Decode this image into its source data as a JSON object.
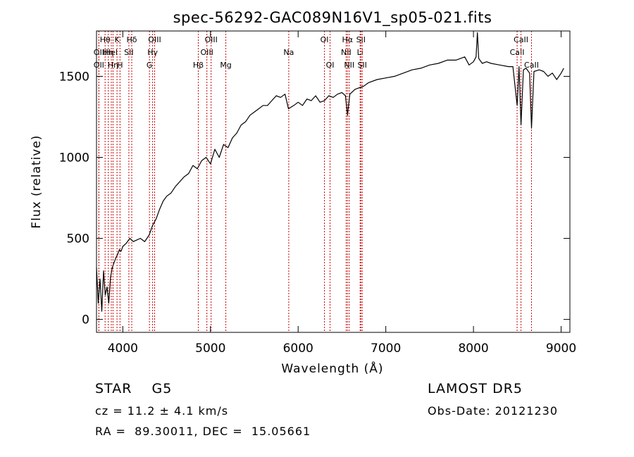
{
  "chart_data": {
    "type": "line",
    "title": "spec-56292-GAC089N16V1_sp05-021.fits",
    "xlabel": "Wavelength (Å)",
    "ylabel": "Flux (relative)",
    "xlim": [
      3700,
      9100
    ],
    "ylim": [
      -80,
      1780
    ],
    "xticks": [
      4000,
      5000,
      6000,
      7000,
      8000,
      9000
    ],
    "yticks": [
      0,
      500,
      1000,
      1500
    ],
    "grid": false,
    "legend": "none",
    "series": [
      {
        "x": [
          3700,
          3720,
          3740,
          3760,
          3780,
          3800,
          3820,
          3840,
          3860,
          3880,
          3900,
          3920,
          3940,
          3960,
          3980,
          4000,
          4040,
          4080,
          4120,
          4160,
          4200,
          4250,
          4300,
          4340,
          4380,
          4420,
          4460,
          4500,
          4550,
          4600,
          4650,
          4700,
          4750,
          4800,
          4850,
          4900,
          4950,
          5000,
          5050,
          5100,
          5150,
          5200,
          5250,
          5300,
          5350,
          5400,
          5450,
          5500,
          5550,
          5600,
          5650,
          5700,
          5750,
          5800,
          5850,
          5890,
          5950,
          6000,
          6050,
          6100,
          6150,
          6200,
          6250,
          6300,
          6350,
          6400,
          6450,
          6500,
          6540,
          6563,
          6590,
          6650,
          6700,
          6750,
          6800,
          6900,
          7000,
          7100,
          7200,
          7300,
          7400,
          7500,
          7600,
          7700,
          7800,
          7900,
          7950,
          8000,
          8030,
          8045,
          8060,
          8100,
          8150,
          8200,
          8300,
          8400,
          8450,
          8498,
          8520,
          8542,
          8570,
          8600,
          8640,
          8662,
          8690,
          8750,
          8800,
          8850,
          8900,
          8950,
          9000,
          9030
        ],
        "y": [
          320,
          100,
          250,
          50,
          300,
          150,
          200,
          100,
          260,
          320,
          350,
          380,
          400,
          430,
          420,
          450,
          470,
          500,
          480,
          490,
          500,
          480,
          520,
          580,
          620,
          680,
          730,
          760,
          780,
          820,
          850,
          880,
          900,
          950,
          930,
          980,
          1000,
          960,
          1050,
          1000,
          1080,
          1060,
          1120,
          1150,
          1200,
          1220,
          1260,
          1280,
          1300,
          1320,
          1320,
          1350,
          1380,
          1370,
          1390,
          1300,
          1320,
          1340,
          1320,
          1360,
          1350,
          1380,
          1340,
          1350,
          1380,
          1370,
          1390,
          1400,
          1380,
          1260,
          1390,
          1420,
          1430,
          1440,
          1460,
          1480,
          1490,
          1500,
          1520,
          1540,
          1550,
          1570,
          1580,
          1600,
          1600,
          1620,
          1570,
          1590,
          1620,
          1770,
          1610,
          1580,
          1590,
          1580,
          1570,
          1560,
          1560,
          1320,
          1560,
          1200,
          1540,
          1550,
          1520,
          1180,
          1530,
          1540,
          1530,
          1500,
          1520,
          1480,
          1520,
          1550
        ]
      }
    ],
    "line_markers": [
      {
        "x": 3798,
        "label": "Hθ",
        "row": 0
      },
      {
        "x": 3835,
        "label": "Hη",
        "row": 1
      },
      {
        "x": 3869,
        "label": "HeI",
        "row": 1
      },
      {
        "x": 3727,
        "label": "OII",
        "row": 1
      },
      {
        "x": 3727,
        "label": "OII",
        "row": 2
      },
      {
        "x": 3889,
        "label": "Hη",
        "row": 2
      },
      {
        "x": 3934,
        "label": "K",
        "row": 0
      },
      {
        "x": 3968,
        "label": "H",
        "row": 2
      },
      {
        "x": 4069,
        "label": "SII",
        "row": 1
      },
      {
        "x": 4102,
        "label": "Hδ",
        "row": 0
      },
      {
        "x": 4304,
        "label": "G",
        "row": 2
      },
      {
        "x": 4340,
        "label": "Hγ",
        "row": 1
      },
      {
        "x": 4363,
        "label": "OIII",
        "row": 0
      },
      {
        "x": 4861,
        "label": "Hβ",
        "row": 2
      },
      {
        "x": 4959,
        "label": "OIII",
        "row": 1
      },
      {
        "x": 5007,
        "label": "OIII",
        "row": 0
      },
      {
        "x": 5175,
        "label": "Mg",
        "row": 2
      },
      {
        "x": 5893,
        "label": "Na",
        "row": 1
      },
      {
        "x": 6300,
        "label": "OI",
        "row": 0
      },
      {
        "x": 6364,
        "label": "OI",
        "row": 2
      },
      {
        "x": 6548,
        "label": "NII",
        "row": 1
      },
      {
        "x": 6563,
        "label": "Hα",
        "row": 0
      },
      {
        "x": 6583,
        "label": "NII",
        "row": 2
      },
      {
        "x": 6707,
        "label": "Li",
        "row": 1
      },
      {
        "x": 6716,
        "label": "SII",
        "row": 0
      },
      {
        "x": 6731,
        "label": "SII",
        "row": 2
      },
      {
        "x": 8498,
        "label": "CaII",
        "row": 1
      },
      {
        "x": 8542,
        "label": "CaII",
        "row": 0
      },
      {
        "x": 8662,
        "label": "CaII",
        "row": 2
      }
    ],
    "line_color": "#000000",
    "marker_color": "#cc0000"
  },
  "info": {
    "class_label": "STAR    G5",
    "cz_label": "cz = 11.2 ± 4.1 km/s",
    "coords_label": "RA =  89.30011, DEC =  15.05661",
    "survey_label": "LAMOST DR5",
    "obsdate_label": "Obs-Date: 20121230"
  }
}
